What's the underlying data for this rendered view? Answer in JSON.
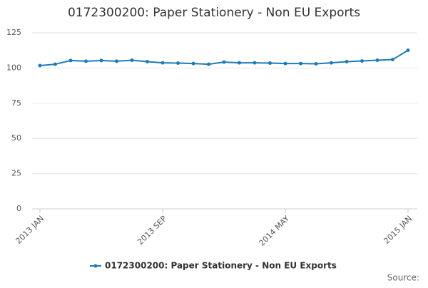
{
  "chart_data": {
    "type": "line",
    "title": "0172300200: Paper Stationery - Non EU Exports",
    "categories": [
      "2013 JAN",
      null,
      null,
      null,
      null,
      null,
      null,
      null,
      "2013 SEP",
      null,
      null,
      null,
      null,
      null,
      null,
      null,
      "2014 MAY",
      null,
      null,
      null,
      null,
      null,
      null,
      null,
      "2015 JAN"
    ],
    "series": [
      {
        "name": "0172300200: Paper Stationery - Non EU Exports",
        "color": "#1f7bb6",
        "values": [
          101.7,
          102.7,
          105.3,
          104.8,
          105.3,
          104.8,
          105.5,
          104.5,
          103.7,
          103.5,
          103.2,
          102.7,
          104.2,
          103.7,
          103.7,
          103.5,
          103.2,
          103.2,
          103.0,
          103.7,
          104.5,
          105.0,
          105.5,
          106.0,
          112.6
        ]
      }
    ],
    "ylim": [
      0,
      125
    ],
    "yticks": [
      0,
      25,
      50,
      75,
      100,
      125
    ],
    "grid": true,
    "legend": "bottom",
    "source": "Source:"
  }
}
